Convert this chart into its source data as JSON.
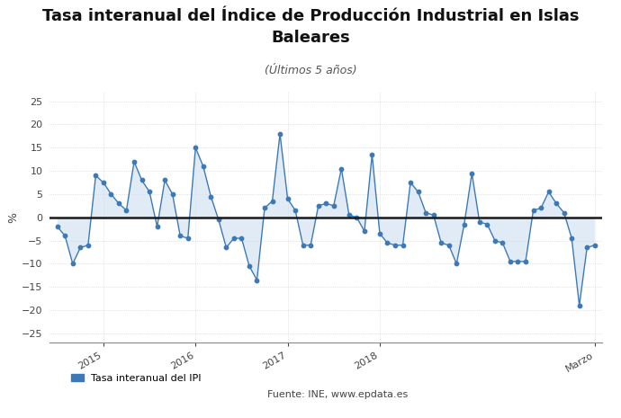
{
  "title_line1": "Tasa interanual del Índice de Producción Industrial en Islas",
  "title_line2": "Baleares",
  "subtitle": "(Últimos 5 años)",
  "ylabel": "%",
  "ylim": [
    -27,
    27
  ],
  "yticks": [
    -25,
    -20,
    -15,
    -10,
    -5,
    0,
    5,
    10,
    15,
    20,
    25
  ],
  "legend_label": "Tasa interanual del IPI",
  "source_label": "Fuente: INE, www.epdata.es",
  "line_color": "#3d7ab5",
  "fill_color": "#ccdff0",
  "background_color": "#ffffff",
  "zero_line_color": "#1a1a1a",
  "grid_color": "#cccccc",
  "xtick_labels": [
    "2015",
    "2016",
    "2017",
    "2018",
    "Marzo"
  ],
  "values": [
    -2.0,
    -4.0,
    -10.0,
    -6.5,
    -6.0,
    9.0,
    7.5,
    5.0,
    3.0,
    1.5,
    12.0,
    8.0,
    5.5,
    -2.0,
    8.0,
    5.0,
    -4.0,
    -4.5,
    15.0,
    11.0,
    4.5,
    -0.5,
    -6.5,
    -4.5,
    -4.5,
    -10.5,
    -13.5,
    2.0,
    3.5,
    18.0,
    4.0,
    1.5,
    -6.0,
    -6.0,
    2.5,
    3.0,
    2.5,
    10.5,
    0.5,
    0.0,
    -3.0,
    13.5,
    -3.5,
    -5.5,
    -6.0,
    -6.0,
    7.5,
    5.5,
    1.0,
    0.5,
    -5.5,
    -6.0,
    -10.0,
    -1.5,
    9.5,
    -1.0,
    -1.5,
    -5.0,
    -5.5,
    -9.5,
    -9.5,
    -9.5,
    1.5,
    2.0,
    5.5,
    3.0,
    1.0,
    -4.5,
    -19.0,
    -6.5,
    -6.0
  ],
  "year_positions": [
    6,
    18,
    30,
    42,
    70
  ],
  "title_fontsize": 13,
  "subtitle_fontsize": 9,
  "tick_fontsize": 8,
  "legend_fontsize": 8
}
